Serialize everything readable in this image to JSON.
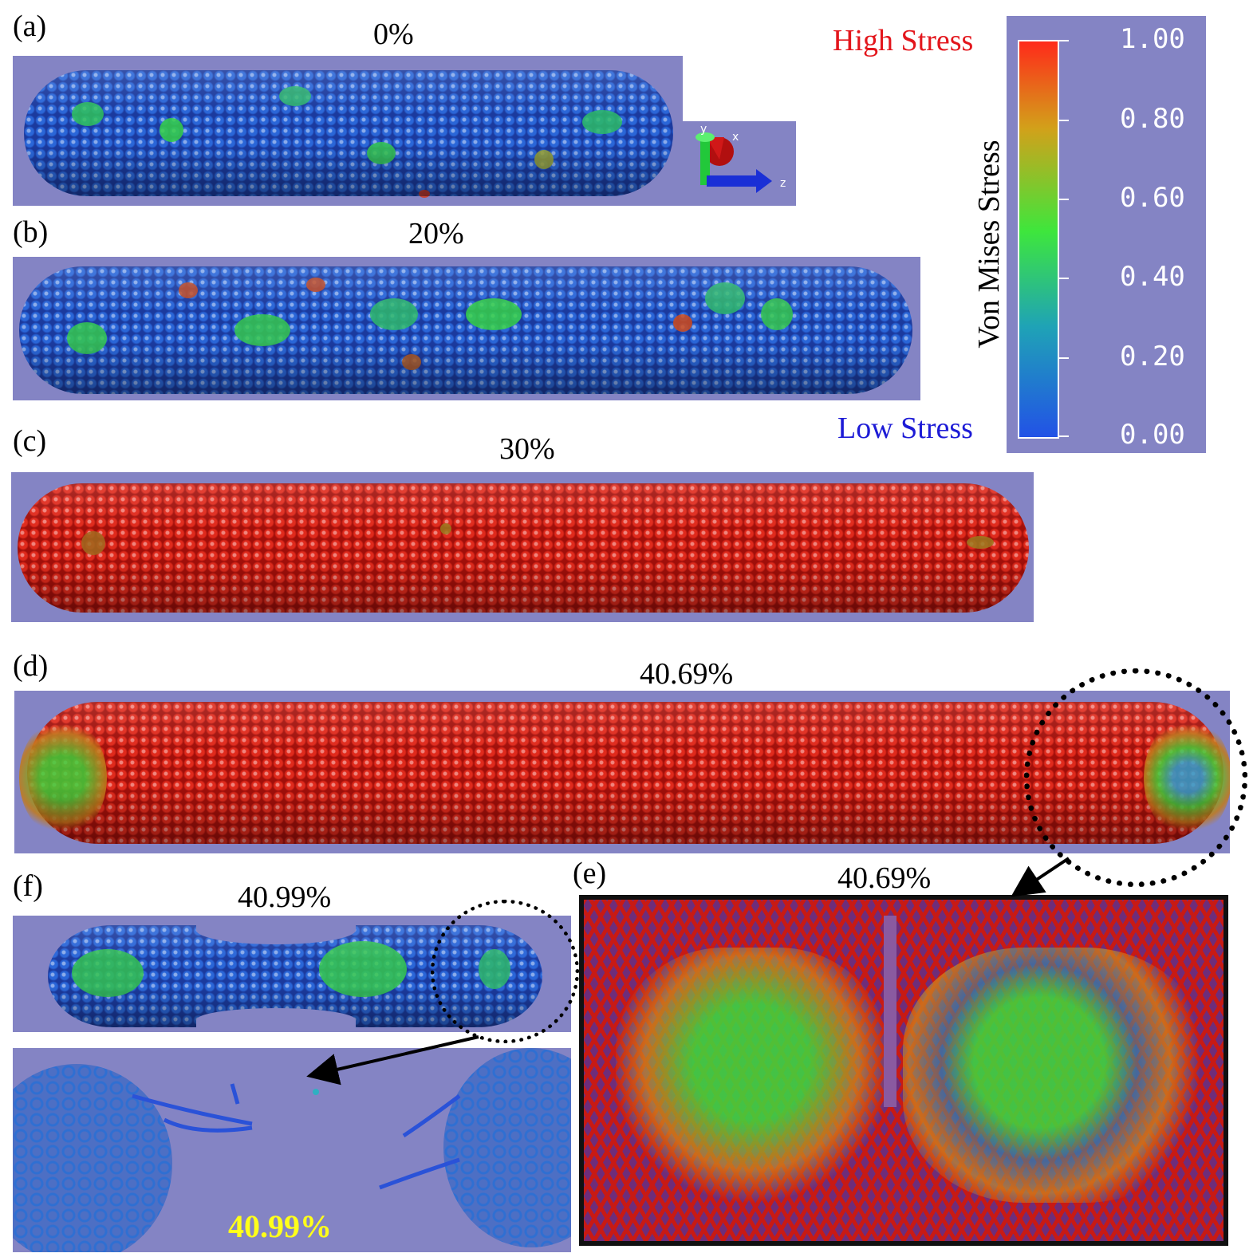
{
  "panels": {
    "a": {
      "label": "(a)",
      "strain": "0%"
    },
    "b": {
      "label": "(b)",
      "strain": "20%"
    },
    "c": {
      "label": "(c)",
      "strain": "30%"
    },
    "d": {
      "label": "(d)",
      "strain": "40.69%"
    },
    "e": {
      "label": "(e)",
      "strain": "40.69%"
    },
    "f": {
      "label": "(f)",
      "strain": "40.99%",
      "zoom_strain": "40.99%"
    }
  },
  "axes_triad": {
    "labels": [
      "y",
      "x",
      "z"
    ]
  },
  "legend": {
    "high_label": "High Stress",
    "low_label": "Low Stress",
    "title": "Von Mises Stress",
    "ticks": [
      "1.00",
      "0.80",
      "0.60",
      "0.40",
      "0.20",
      "0.00"
    ],
    "colors": [
      "#ff2a1a",
      "#d2a11a",
      "#3ee63c",
      "#1fa3b6",
      "#2252e6"
    ],
    "high_color": "#e3161c",
    "low_color": "#1d1bd6",
    "zoom_label_color": "#ffff1a"
  }
}
